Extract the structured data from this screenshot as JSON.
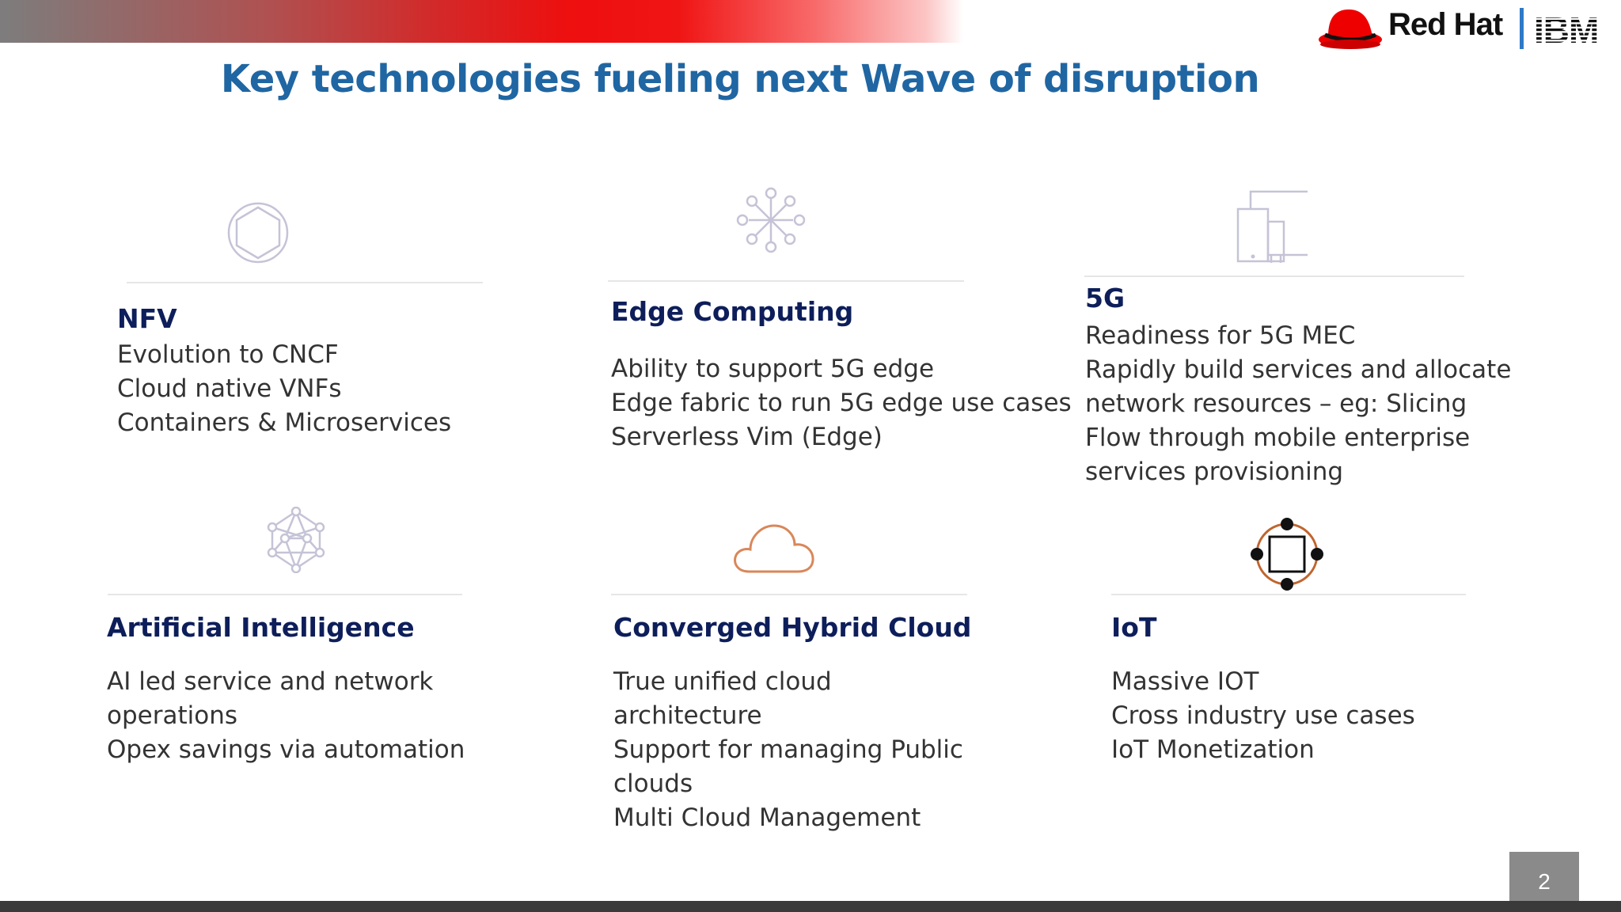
{
  "header": {
    "title": "Key technologies fueling next Wave of disruption",
    "brand": {
      "redhat_text": "Red Hat",
      "ibm_text": "IBM"
    },
    "colors": {
      "title": "#1f66a3",
      "band_red": "#ee0f0f",
      "ibm_blue": "#2e79c8"
    }
  },
  "cells": [
    {
      "icon": "hexagon-circle-icon",
      "title": "NFV",
      "lines": [
        "Evolution to CNCF",
        "Cloud native VNFs",
        "Containers & Microservices"
      ]
    },
    {
      "icon": "network-burst-icon",
      "title": "Edge Computing",
      "lines": [
        "Ability to support 5G edge",
        "Edge fabric to run 5G edge use cases",
        "Serverless Vim (Edge)"
      ]
    },
    {
      "icon": "mobile-tower-icon",
      "title": "5G",
      "lines": [
        "Readiness for 5G MEC",
        "Rapidly build services and allocate",
        "network resources – eg: Slicing",
        "Flow through mobile enterprise",
        "services provisioning"
      ]
    },
    {
      "icon": "neural-network-icon",
      "title": "Artificial  Intelligence",
      "lines": [
        "AI led service and network",
        "operations",
        "Opex savings via automation"
      ]
    },
    {
      "icon": "cloud-icon",
      "title": "Converged Hybrid Cloud",
      "lines": [
        "True unified cloud",
        "architecture",
        "Support for managing Public",
        "clouds",
        "Multi Cloud Management"
      ]
    },
    {
      "icon": "iot-device-icon",
      "title": "IoT",
      "lines": [
        "Massive IOT",
        "Cross industry use cases",
        "IoT Monetization"
      ]
    }
  ],
  "footer": {
    "page_number": "2"
  }
}
